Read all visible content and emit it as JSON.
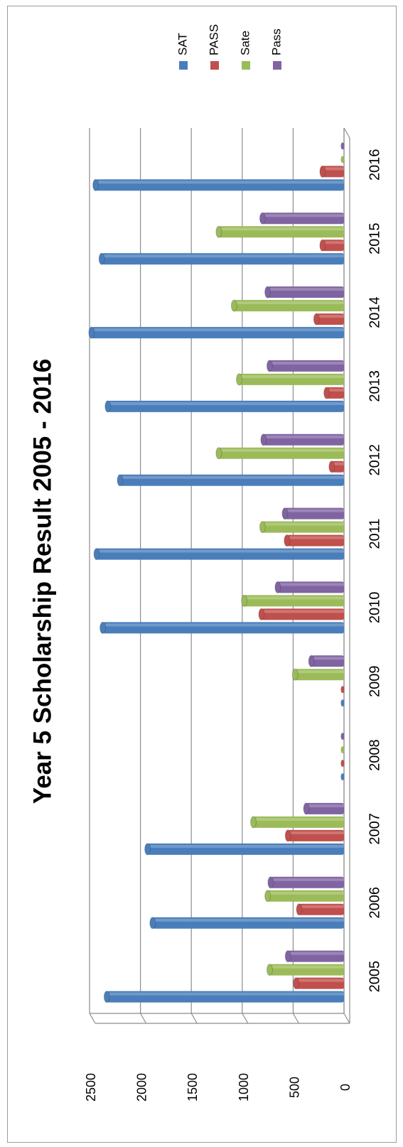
{
  "chart_data": {
    "type": "bar",
    "orientation": "rotated-90-clockwise",
    "title": "Year 5 Scholarship Result 2005 - 2016",
    "categories": [
      "2005",
      "2006",
      "2007",
      "2008",
      "2009",
      "2010",
      "2011",
      "2012",
      "2013",
      "2014",
      "2015",
      "2016"
    ],
    "series": [
      {
        "name": "SAT",
        "color": "#4a7ebb",
        "values": [
          2330,
          1880,
          1930,
          0,
          0,
          2370,
          2430,
          2200,
          2320,
          2480,
          2380,
          2440
        ]
      },
      {
        "name": "PASS",
        "color": "#c0504d",
        "values": [
          470,
          440,
          550,
          0,
          0,
          810,
          560,
          120,
          170,
          270,
          210,
          210
        ]
      },
      {
        "name": "Sate",
        "color": "#9bbb59",
        "values": [
          730,
          750,
          890,
          0,
          480,
          980,
          800,
          1230,
          1030,
          1080,
          1230,
          0
        ]
      },
      {
        "name": "Pass",
        "color": "#8064a2",
        "values": [
          550,
          720,
          370,
          0,
          320,
          650,
          580,
          790,
          730,
          750,
          800,
          0
        ]
      }
    ],
    "y_ticks": [
      "0",
      "500",
      "1000",
      "1500",
      "2000",
      "2500"
    ],
    "ylim": [
      0,
      2500
    ],
    "grid": true,
    "legend_position": "top-right"
  }
}
